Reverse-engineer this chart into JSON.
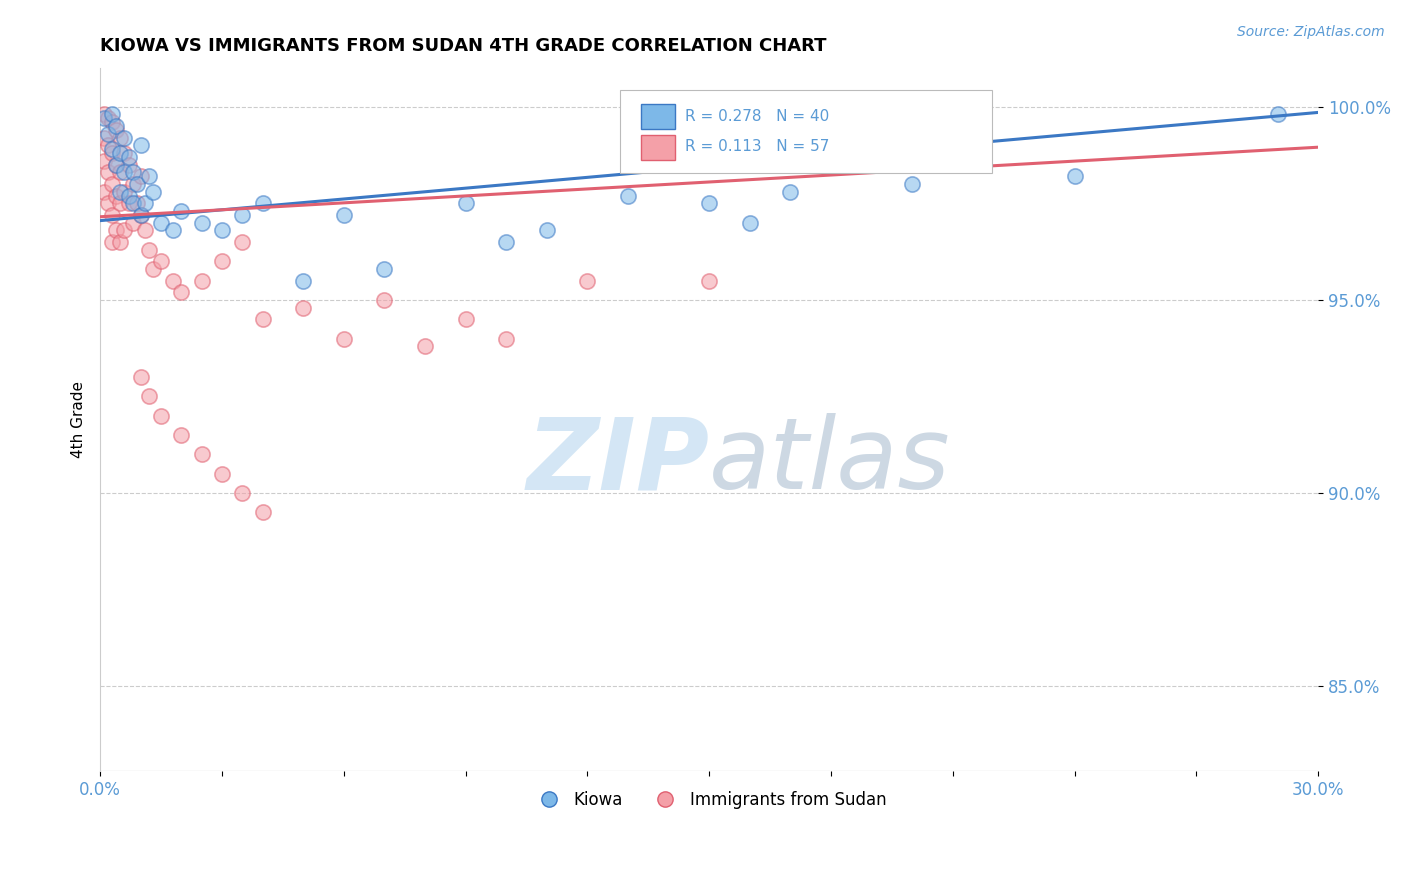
{
  "title": "KIOWA VS IMMIGRANTS FROM SUDAN 4TH GRADE CORRELATION CHART",
  "title_fontsize": 13,
  "ylabel": "4th Grade",
  "source_text": "Source: ZipAtlas.com",
  "xlim": [
    0.0,
    0.3
  ],
  "ylim": [
    0.828,
    1.01
  ],
  "xticks": [
    0.0,
    0.03,
    0.06,
    0.09,
    0.12,
    0.15,
    0.18,
    0.21,
    0.24,
    0.27,
    0.3
  ],
  "ytick_positions": [
    0.85,
    0.9,
    0.95,
    1.0
  ],
  "ytick_labels": [
    "85.0%",
    "90.0%",
    "95.0%",
    "100.0%"
  ],
  "legend_r1": "R = 0.278",
  "legend_n1": "N = 40",
  "legend_r2": "R = 0.113",
  "legend_n2": "N = 57",
  "color_blue": "#7DB8E8",
  "color_pink": "#F4A0A8",
  "color_blue_dark": "#3B78C4",
  "color_pink_dark": "#E06070",
  "color_axis_label": "#5B9BD5",
  "watermark_color": "#D0E4F4",
  "blue_line_x": [
    0.0,
    0.3
  ],
  "blue_line_y": [
    0.9705,
    0.9985
  ],
  "pink_line_x": [
    0.0,
    0.3
  ],
  "pink_line_y": [
    0.9715,
    0.9895
  ],
  "blue_scatter_x": [
    0.001,
    0.002,
    0.003,
    0.003,
    0.004,
    0.004,
    0.005,
    0.005,
    0.006,
    0.006,
    0.007,
    0.007,
    0.008,
    0.008,
    0.009,
    0.01,
    0.01,
    0.011,
    0.012,
    0.013,
    0.015,
    0.018,
    0.02,
    0.025,
    0.03,
    0.035,
    0.04,
    0.06,
    0.09,
    0.1,
    0.13,
    0.15,
    0.17,
    0.2,
    0.24,
    0.29,
    0.05,
    0.07,
    0.11,
    0.16
  ],
  "blue_scatter_y": [
    0.997,
    0.993,
    0.998,
    0.989,
    0.995,
    0.985,
    0.988,
    0.978,
    0.992,
    0.983,
    0.987,
    0.977,
    0.983,
    0.975,
    0.98,
    0.99,
    0.972,
    0.975,
    0.982,
    0.978,
    0.97,
    0.968,
    0.973,
    0.97,
    0.968,
    0.972,
    0.975,
    0.972,
    0.975,
    0.965,
    0.977,
    0.975,
    0.978,
    0.98,
    0.982,
    0.998,
    0.955,
    0.958,
    0.968,
    0.97
  ],
  "pink_scatter_x": [
    0.001,
    0.001,
    0.001,
    0.001,
    0.002,
    0.002,
    0.002,
    0.002,
    0.003,
    0.003,
    0.003,
    0.003,
    0.003,
    0.004,
    0.004,
    0.004,
    0.004,
    0.005,
    0.005,
    0.005,
    0.005,
    0.006,
    0.006,
    0.006,
    0.007,
    0.007,
    0.008,
    0.008,
    0.009,
    0.01,
    0.01,
    0.011,
    0.012,
    0.013,
    0.015,
    0.018,
    0.02,
    0.025,
    0.03,
    0.035,
    0.04,
    0.05,
    0.06,
    0.07,
    0.08,
    0.09,
    0.1,
    0.12,
    0.15,
    0.01,
    0.012,
    0.015,
    0.02,
    0.025,
    0.03,
    0.035,
    0.04
  ],
  "pink_scatter_y": [
    0.998,
    0.992,
    0.986,
    0.978,
    0.997,
    0.99,
    0.983,
    0.975,
    0.996,
    0.988,
    0.98,
    0.972,
    0.965,
    0.994,
    0.985,
    0.977,
    0.968,
    0.992,
    0.983,
    0.975,
    0.965,
    0.988,
    0.978,
    0.968,
    0.985,
    0.975,
    0.98,
    0.97,
    0.975,
    0.982,
    0.972,
    0.968,
    0.963,
    0.958,
    0.96,
    0.955,
    0.952,
    0.955,
    0.96,
    0.965,
    0.945,
    0.948,
    0.94,
    0.95,
    0.938,
    0.945,
    0.94,
    0.955,
    0.955,
    0.93,
    0.925,
    0.92,
    0.915,
    0.91,
    0.905,
    0.9,
    0.895
  ]
}
